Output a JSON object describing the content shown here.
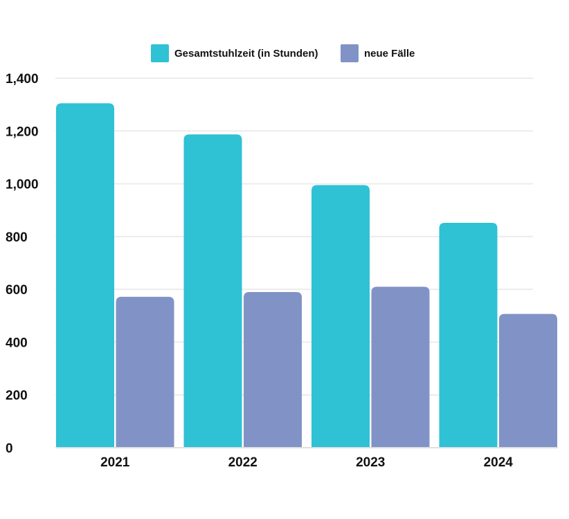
{
  "chart_data": {
    "type": "bar",
    "categories": [
      "2021",
      "2022",
      "2023",
      "2024"
    ],
    "series": [
      {
        "name": "Gesamtstuhlzeit (in Stunden)",
        "values": [
          1305,
          1187,
          995,
          852
        ],
        "color": "#2fc1d4"
      },
      {
        "name": "neue Fälle",
        "values": [
          572,
          590,
          610,
          507
        ],
        "color": "#8193c6"
      }
    ],
    "ylim": [
      0,
      1400
    ],
    "yticks": [
      0,
      200,
      400,
      600,
      800,
      1000,
      1200,
      1400
    ],
    "ytick_labels": [
      "0",
      "200",
      "400",
      "600",
      "800",
      "1,000",
      "1,200",
      "1,400"
    ],
    "grid": true,
    "legend_position": "top-center"
  }
}
